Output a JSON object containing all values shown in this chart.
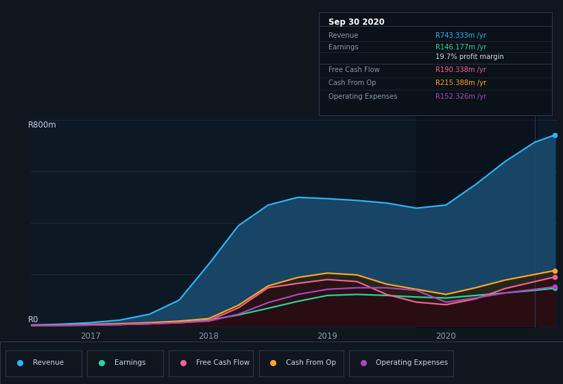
{
  "bg_color": "#10161e",
  "plot_bg_color": "#0d1825",
  "grid_color": "#1e2d40",
  "text_color": "#8899aa",
  "title_color": "#ffffff",
  "series": {
    "revenue": {
      "color": "#29b6f6",
      "fill_color": "#1a4a6e",
      "label": "Revenue"
    },
    "earnings": {
      "color": "#26d7a0",
      "fill_color": "#0a2a28",
      "label": "Earnings"
    },
    "free_cash_flow": {
      "color": "#f06292",
      "fill_color": "#3a1020",
      "label": "Free Cash Flow"
    },
    "cash_from_op": {
      "color": "#ffa726",
      "fill_color": "#3a2808",
      "label": "Cash From Op"
    },
    "operating_expenses": {
      "color": "#ab47bc",
      "fill_color": "#2a1030",
      "label": "Operating Expenses"
    }
  },
  "legend": [
    {
      "label": "Revenue",
      "color": "#29b6f6"
    },
    {
      "label": "Earnings",
      "color": "#26d7a0"
    },
    {
      "label": "Free Cash Flow",
      "color": "#f06292"
    },
    {
      "label": "Cash From Op",
      "color": "#ffa726"
    },
    {
      "label": "Operating Expenses",
      "color": "#ab47bc"
    }
  ],
  "t": [
    2016.5,
    2016.75,
    2017.0,
    2017.25,
    2017.5,
    2017.75,
    2018.0,
    2018.25,
    2018.5,
    2018.75,
    2019.0,
    2019.25,
    2019.5,
    2019.75,
    2020.0,
    2020.25,
    2020.5,
    2020.75,
    2020.92
  ],
  "revenue": [
    3,
    6,
    12,
    22,
    45,
    100,
    240,
    390,
    470,
    500,
    495,
    488,
    478,
    458,
    470,
    550,
    640,
    715,
    743
  ],
  "earnings": [
    1,
    2,
    3,
    5,
    8,
    14,
    22,
    42,
    68,
    95,
    118,
    122,
    118,
    112,
    108,
    118,
    128,
    138,
    146
  ],
  "free_cash_flow": [
    1,
    2,
    3,
    5,
    8,
    12,
    20,
    70,
    148,
    165,
    180,
    172,
    122,
    92,
    82,
    105,
    145,
    172,
    190
  ],
  "cash_from_op": [
    2,
    3,
    5,
    8,
    12,
    18,
    28,
    80,
    155,
    188,
    205,
    198,
    162,
    142,
    122,
    148,
    178,
    200,
    215
  ],
  "operating_expenses": [
    1,
    2,
    3,
    5,
    8,
    12,
    18,
    45,
    90,
    122,
    142,
    148,
    148,
    138,
    92,
    108,
    128,
    142,
    152
  ]
}
